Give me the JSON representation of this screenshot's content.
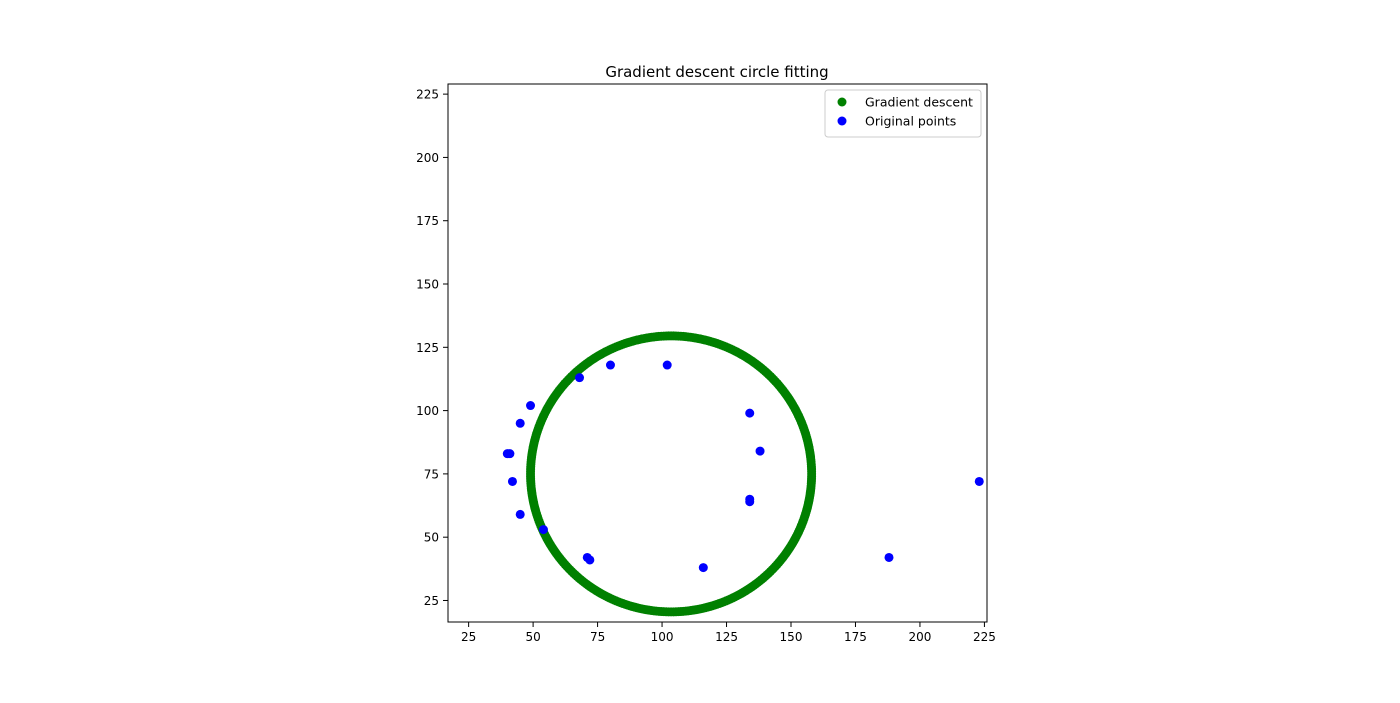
{
  "chart_data": {
    "type": "scatter",
    "title": "Gradient descent circle fitting",
    "xlabel": "",
    "ylabel": "",
    "xlim": [
      17,
      226
    ],
    "ylim": [
      16.5,
      229
    ],
    "xticks": [
      25,
      50,
      75,
      100,
      125,
      150,
      175,
      200,
      225
    ],
    "yticks": [
      25,
      50,
      75,
      100,
      125,
      150,
      175,
      200,
      225
    ],
    "grid": false,
    "legend_position": "top-right",
    "series": [
      {
        "name": "Gradient descent",
        "color": "#008000",
        "marker": "circle",
        "kind": "circle-fit",
        "center": [
          103.5,
          75
        ],
        "radius": 54.5,
        "point_count": 360
      },
      {
        "name": "Original points",
        "color": "#0000ff",
        "marker": "circle",
        "points": [
          [
            41,
            83
          ],
          [
            40,
            83
          ],
          [
            42,
            72
          ],
          [
            45,
            95
          ],
          [
            49,
            102
          ],
          [
            45,
            59
          ],
          [
            54,
            53
          ],
          [
            68,
            113
          ],
          [
            80,
            118
          ],
          [
            102,
            118
          ],
          [
            134,
            99
          ],
          [
            138,
            84
          ],
          [
            134,
            65
          ],
          [
            134,
            64
          ],
          [
            71,
            42
          ],
          [
            72,
            41
          ],
          [
            116,
            38
          ],
          [
            188,
            42
          ],
          [
            223,
            72
          ]
        ]
      }
    ]
  }
}
